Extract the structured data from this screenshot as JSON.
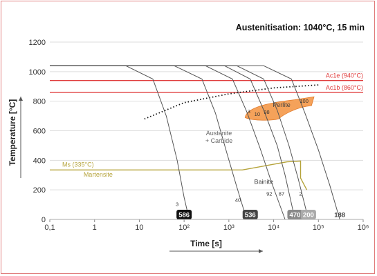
{
  "chart_data": {
    "type": "line",
    "title": "Austenitisation: 1040°C, 15 min",
    "xlabel": "Time [s]",
    "ylabel": "Temperature [°C]",
    "xscale": "log",
    "xlim": [
      0.1,
      1000000
    ],
    "ylim": [
      0,
      1200
    ],
    "x_tick_labels": [
      "0,1",
      "1",
      "10",
      "10²",
      "10³",
      "10⁴",
      "10⁵",
      "10⁶"
    ],
    "y_ticks": [
      0,
      200,
      400,
      600,
      800,
      1000,
      1200
    ],
    "grid": true,
    "colors": {
      "critical_lines": "#e03c3c",
      "ms_line": "#b5a33a",
      "perlite": "#f5a25a",
      "cooling_curves": "#555555",
      "frame": "#e07a7a"
    },
    "reference_lines": [
      {
        "name": "Ac1e (940°C)",
        "y": 940,
        "color": "#e03c3c"
      },
      {
        "name": "Ac1b (860°C)",
        "y": 860,
        "color": "#e03c3c"
      },
      {
        "name": "Ms (335°C)",
        "y": 335,
        "color": "#b5a33a"
      }
    ],
    "regions": [
      "Austenite\n+ Carbide",
      "Perlite",
      "Bainite",
      "Martensite"
    ],
    "phase_percentages": [
      {
        "label": "3",
        "x": 70,
        "y": 90
      },
      {
        "label": "40",
        "x": 1600,
        "y": 120
      },
      {
        "label": "92",
        "x": 8000,
        "y": 160
      },
      {
        "label": "87",
        "x": 15000,
        "y": 160
      },
      {
        "label": "2",
        "x": 40000,
        "y": 160
      },
      {
        "label": "3",
        "x": 2800,
        "y": 720
      },
      {
        "label": "10",
        "x": 4300,
        "y": 700
      },
      {
        "label": "98",
        "x": 7000,
        "y": 715
      },
      {
        "label": "100",
        "x": 48000,
        "y": 790
      }
    ],
    "series": [
      {
        "points": [
          [
            0.1,
            1040
          ],
          [
            5,
            1040
          ],
          [
            20,
            950
          ],
          [
            40,
            700
          ],
          [
            70,
            400
          ],
          [
            100,
            150
          ],
          [
            130,
            0
          ]
        ]
      },
      {
        "points": [
          [
            0.1,
            1040
          ],
          [
            60,
            1040
          ],
          [
            250,
            950
          ],
          [
            500,
            720
          ],
          [
            900,
            450
          ],
          [
            1500,
            220
          ],
          [
            2500,
            0
          ]
        ]
      },
      {
        "points": [
          [
            0.1,
            1040
          ],
          [
            300,
            1040
          ],
          [
            1200,
            950
          ],
          [
            2500,
            730
          ],
          [
            5000,
            480
          ],
          [
            9000,
            250
          ],
          [
            18000,
            0
          ]
        ]
      },
      {
        "points": [
          [
            0.1,
            1040
          ],
          [
            800,
            1040
          ],
          [
            3000,
            950
          ],
          [
            6000,
            740
          ],
          [
            12000,
            500
          ],
          [
            18000,
            300
          ],
          [
            30000,
            0
          ]
        ]
      },
      {
        "points": [
          [
            0.1,
            1040
          ],
          [
            1500,
            1040
          ],
          [
            6000,
            950
          ],
          [
            12000,
            740
          ],
          [
            22000,
            500
          ],
          [
            35000,
            280
          ],
          [
            60000,
            0
          ]
        ]
      },
      {
        "points": [
          [
            0.1,
            1040
          ],
          [
            6000,
            1040
          ],
          [
            25000,
            950
          ],
          [
            50000,
            720
          ],
          [
            100000,
            470
          ],
          [
            180000,
            230
          ],
          [
            300000,
            0
          ]
        ]
      }
    ],
    "ms_curve": [
      [
        0.1,
        335
      ],
      [
        2000,
        335
      ],
      [
        20000,
        390
      ],
      [
        40000,
        395
      ],
      [
        40000,
        280
      ],
      [
        55000,
        200
      ]
    ],
    "start_curve": [
      [
        13,
        680
      ],
      [
        100,
        790
      ],
      [
        1000,
        850
      ],
      [
        10000,
        890
      ],
      [
        100000,
        910
      ]
    ],
    "hardness_values": [
      {
        "label": "586",
        "x": 100,
        "bg": "#111111"
      },
      {
        "label": "536",
        "x": 3000,
        "bg": "#444444"
      },
      {
        "label": "470",
        "x": 30000,
        "bg": "#8a8a8a"
      },
      {
        "label": "200",
        "x": 60000,
        "bg": "#aaaaaa"
      },
      {
        "label": "188",
        "x": 300000,
        "bg": "none"
      }
    ]
  }
}
